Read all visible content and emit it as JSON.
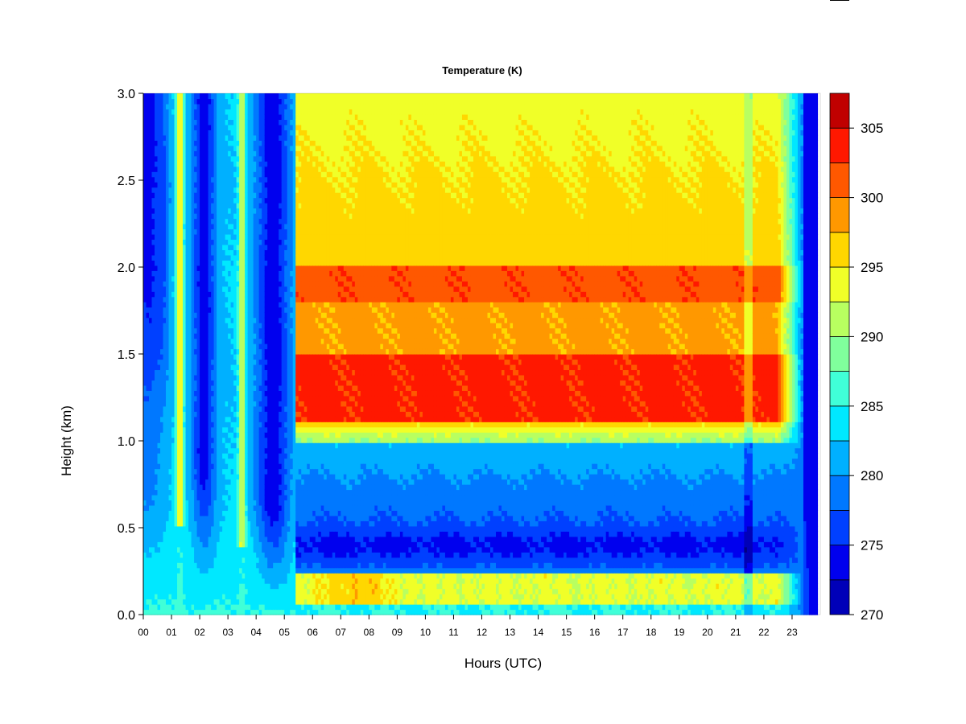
{
  "chart_data": {
    "type": "heatmap",
    "title": "Temperature (K)",
    "xlabel": "Hours (UTC)",
    "ylabel": "Height (km)",
    "x_ticks": [
      "00",
      "01",
      "02",
      "03",
      "04",
      "05",
      "06",
      "07",
      "08",
      "09",
      "10",
      "11",
      "12",
      "13",
      "14",
      "15",
      "16",
      "17",
      "18",
      "19",
      "20",
      "21",
      "22",
      "23"
    ],
    "xlim": [
      0,
      24
    ],
    "y_ticks": [
      "0.0",
      "0.5",
      "1.0",
      "1.5",
      "2.0",
      "2.5",
      "3.0"
    ],
    "ylim": [
      0,
      3
    ],
    "colorbar": {
      "levels": [
        270,
        272.5,
        275,
        277.5,
        280,
        282.5,
        285,
        287.5,
        290,
        292.5,
        295,
        297.5,
        300,
        302.5,
        305,
        307.5
      ],
      "tick_values": [
        270,
        275,
        280,
        285,
        290,
        295,
        300,
        305
      ],
      "tick_labels": [
        "270",
        "275",
        "280",
        "285",
        "290",
        "295",
        "300",
        "305"
      ],
      "colors": [
        "#00007f",
        "#0000b8",
        "#0000ee",
        "#0040ff",
        "#0078ff",
        "#00b0ff",
        "#00e8ff",
        "#40ffd8",
        "#80ff9c",
        "#b8ff60",
        "#f0ff28",
        "#ffd700",
        "#ff9800",
        "#ff5800",
        "#ff1800",
        "#c00000",
        "#800000"
      ]
    },
    "field": {
      "x": [
        0,
        0.5,
        1,
        1.3,
        1.6,
        2,
        2.5,
        3,
        3.5,
        3.8,
        4.2,
        5,
        5.4,
        5.6,
        6,
        6.5,
        7,
        8,
        9,
        10,
        11,
        12,
        13,
        14,
        15,
        16,
        17,
        18,
        19,
        20,
        21,
        21.3,
        21.6,
        22,
        22.5,
        23,
        23.5,
        23.9
      ],
      "y": [
        0,
        0.1,
        0.2,
        0.3,
        0.4,
        0.5,
        0.7,
        0.9,
        1.1,
        1.3,
        1.5,
        1.7,
        1.9,
        2.1,
        2.5,
        3.0
      ]
    },
    "grid": false,
    "legend": "colorbar-right"
  }
}
